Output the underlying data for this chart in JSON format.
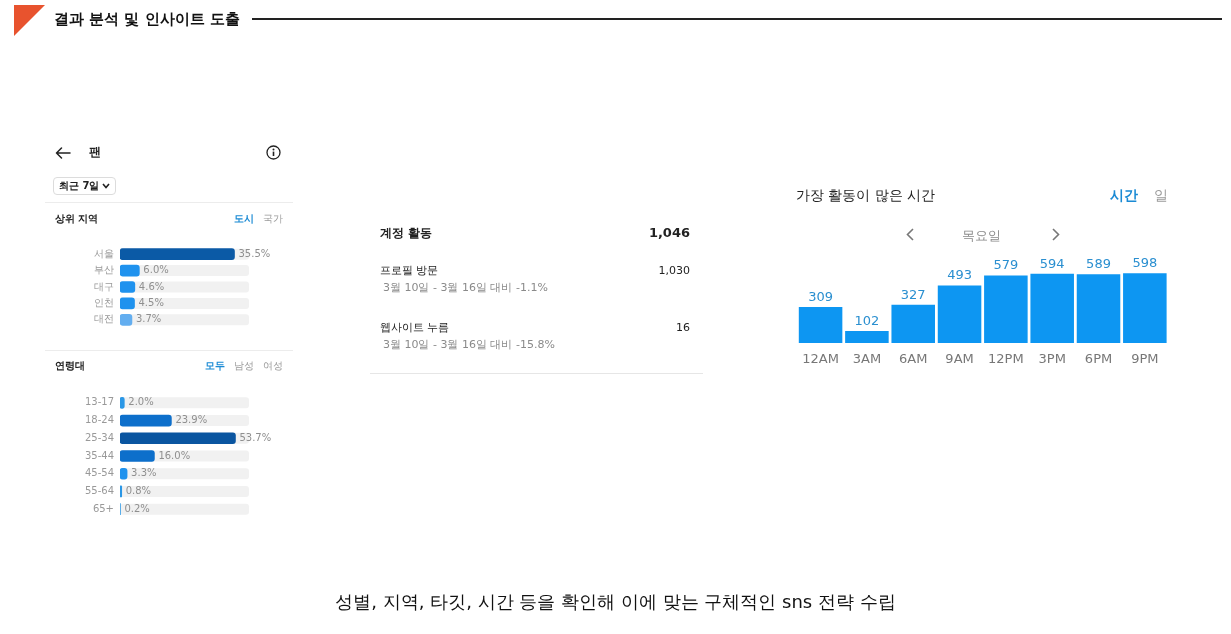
{
  "chart_data": [
    {
      "type": "other",
      "title": "결과 분석 및 인사이트 도출",
      "annotations": [
        "성별, 지역, 타깃, 시간 등을 확인해 이에 맞는 구체적인 sns 전략 수립"
      ]
    },
    {
      "type": "other",
      "title": "팬",
      "annotations": [
        "최근 7일"
      ]
    },
    {
      "type": "bar",
      "orientation": "horizontal",
      "title": "상위 지역",
      "annotations": [
        "도시",
        "국가"
      ],
      "categories": [
        "서울",
        "부산",
        "대구",
        "인천",
        "대전"
      ],
      "values": [
        35.5,
        6.0,
        4.6,
        4.5,
        3.7
      ],
      "value_labels": [
        "35.5%",
        "6.0%",
        "4.6%",
        "4.5%",
        "3.7%"
      ],
      "colors": [
        "#0b5aa6",
        "#1f92ee",
        "#1f92ee",
        "#1f92ee",
        "#63aef0"
      ],
      "tick_labels": "y"
    },
    {
      "type": "bar",
      "orientation": "horizontal",
      "title": "연령대",
      "annotations": [
        "모두",
        "남성",
        "여성"
      ],
      "categories": [
        "13-17",
        "18-24",
        "25-34",
        "35-44",
        "45-54",
        "55-64",
        "65+"
      ],
      "values": [
        2.0,
        23.9,
        53.7,
        16.0,
        3.3,
        0.8,
        0.2
      ],
      "value_labels": [
        "2.0%",
        "23.9%",
        "53.7%",
        "16.0%",
        "3.3%",
        "0.8%",
        "0.2%"
      ],
      "colors": [
        "#2a97e6",
        "#0d6fcb",
        "#0a55a0",
        "#0d6fcb",
        "#1f92ee",
        "#2a97e6",
        "#2a97e6"
      ],
      "tick_labels": "y"
    },
    {
      "type": "other",
      "title": "계정 활동",
      "annotations": [
        "1,046",
        "프로필 방문",
        "1,030",
        "3월 10일 - 3월 16일 대비 -1.1%",
        "웹사이트 누름",
        "16",
        "3월 10일 - 3월 16일 대비 -15.8%"
      ]
    },
    {
      "type": "bar",
      "title": "가장 활동이 많은 시간",
      "subtitle": "목요일",
      "annotations": [
        "시간",
        "일"
      ],
      "categories": [
        "12AM",
        "3AM",
        "6AM",
        "9AM",
        "12PM",
        "3PM",
        "6PM",
        "9PM"
      ],
      "values": [
        309,
        102,
        327,
        493,
        579,
        594,
        589,
        598
      ],
      "color": "#0d96f2",
      "data_labels": true,
      "tick_labels": "x"
    }
  ]
}
